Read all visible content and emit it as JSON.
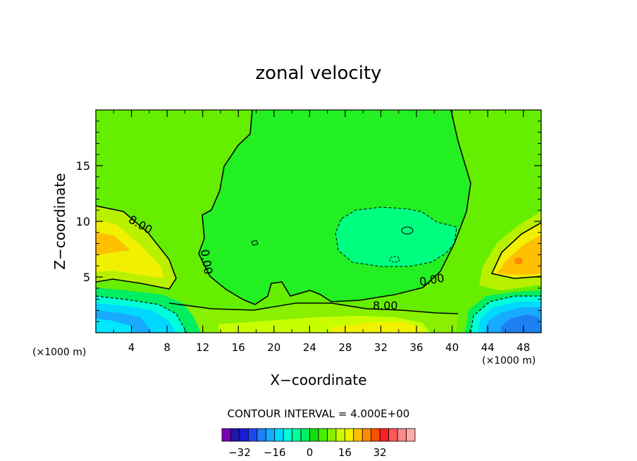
{
  "chart_data": {
    "type": "heatmap",
    "subtype": "filled contour",
    "title": "zonal velocity",
    "xlabel": "X−coordinate",
    "ylabel": "Z−coordinate",
    "x_unit_label_left": "(×1000 m)",
    "x_unit_label_right": "(×1000 m)",
    "xlim": [
      0,
      50
    ],
    "ylim": [
      0,
      20
    ],
    "x_ticks": [
      4,
      8,
      12,
      16,
      20,
      24,
      28,
      32,
      36,
      40,
      44,
      48
    ],
    "y_ticks": [
      5,
      10,
      15
    ],
    "contour_interval_text": "CONTOUR INTERVAL = 4.000E+00",
    "contour_labels": [
      {
        "text": "8.00",
        "x": 4.8,
        "y": 9.4
      },
      {
        "text": "0.00",
        "x": 12.0,
        "y": 6.3
      },
      {
        "text": "0.00",
        "x": 37.8,
        "y": 4.4
      },
      {
        "text": "8.00",
        "x": 32.5,
        "y": 2.1
      }
    ],
    "colorbar": {
      "levels": [
        -36,
        -32,
        -28,
        -24,
        -20,
        -16,
        -12,
        -8,
        -4,
        0,
        4,
        8,
        12,
        16,
        20,
        24,
        28,
        32,
        36
      ],
      "tick_labels": [
        -32,
        -16,
        0,
        16,
        32
      ],
      "colors": [
        "#7a00b8",
        "#1c18a8",
        "#1a1ad8",
        "#1e48f0",
        "#1e7ff0",
        "#18aaff",
        "#00d8ff",
        "#00ffd8",
        "#00ff9a",
        "#00ee60",
        "#10dd10",
        "#48ee00",
        "#88f000",
        "#c8ff00",
        "#f0f000",
        "#ffc000",
        "#ff8800",
        "#ff5000",
        "#ff2020",
        "#ff5a5a",
        "#ff8888",
        "#ffaaaa"
      ]
    },
    "field_regions": [
      {
        "value_range": [
          0,
          4
        ],
        "color": "#22f022",
        "description": "broad core"
      },
      {
        "value_range": [
          -4,
          0
        ],
        "color": "#00ff80",
        "description": "mid-right negative region"
      },
      {
        "value_range": [
          12,
          16
        ],
        "color": "#ffc000",
        "description": "left lobe max"
      },
      {
        "value_range": [
          12,
          16
        ],
        "color": "#ffc000",
        "description": "right lobe max"
      },
      {
        "value_range": [
          -24,
          -16
        ],
        "color": "#1ea0ff",
        "description": "bottom-right minimum"
      },
      {
        "value_range": [
          -16,
          -12
        ],
        "color": "#00e0ff",
        "description": "bottom-left minimum"
      }
    ]
  }
}
